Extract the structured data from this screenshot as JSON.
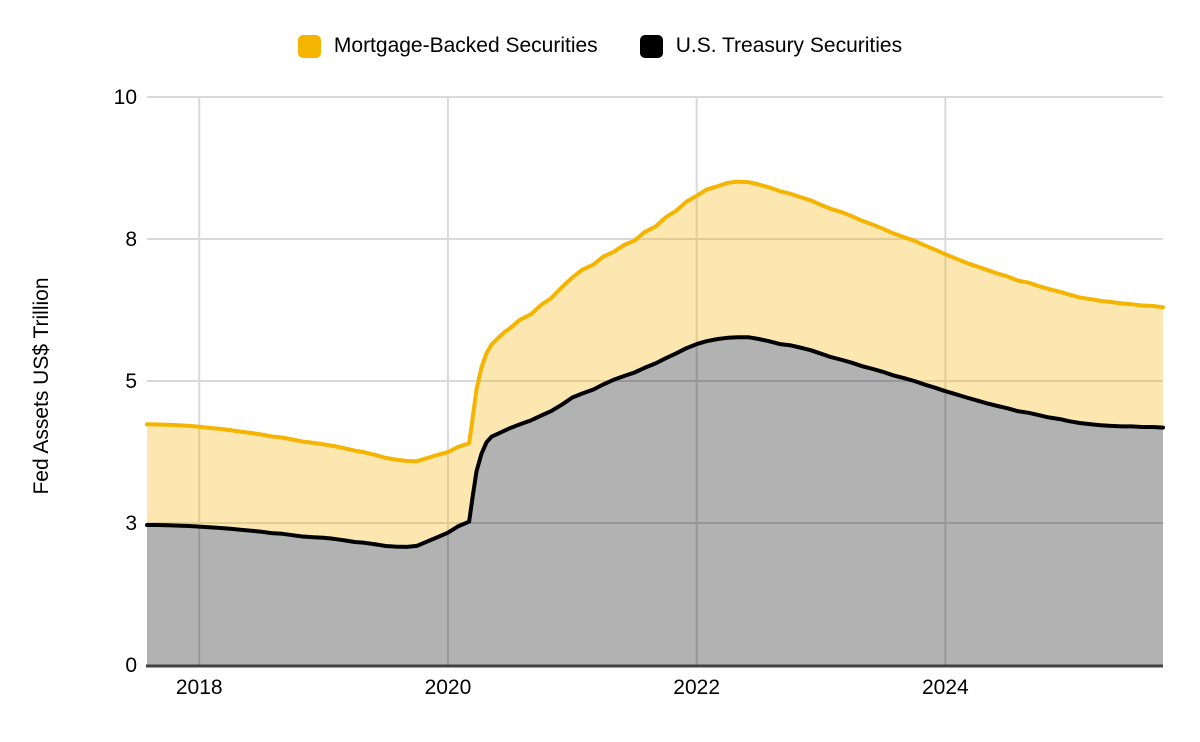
{
  "legend": {
    "items": [
      {
        "label": "Mortgage-Backed Securities",
        "color": "#F5B400"
      },
      {
        "label": "U.S. Treasury Securities",
        "color": "#000000"
      }
    ]
  },
  "y_axis": {
    "title": "Fed Assets US$ Trillion",
    "ticks": [
      {
        "value": 0,
        "label": "0"
      },
      {
        "value": 2.5,
        "label": "3"
      },
      {
        "value": 5,
        "label": "5"
      },
      {
        "value": 7.5,
        "label": "8"
      },
      {
        "value": 10,
        "label": "10"
      }
    ]
  },
  "x_axis": {
    "ticks": [
      {
        "value": 2018,
        "label": "2018"
      },
      {
        "value": 2020,
        "label": "2020"
      },
      {
        "value": 2022,
        "label": "2022"
      },
      {
        "value": 2024,
        "label": "2024"
      }
    ]
  },
  "colors": {
    "mbs_line": "#F5B400",
    "mbs_fill": "rgba(245,180,10,0.32)",
    "treasury_line": "#000000",
    "treasury_fill": "rgba(0,0,0,0.30)",
    "gridline": "#D9D9D9",
    "axis_line": "#424242",
    "text": "#000000"
  },
  "chart_data": {
    "type": "area",
    "stacked": true,
    "title": "",
    "xlabel": "",
    "ylabel": "Fed Assets US$ Trillion",
    "xlim": [
      2017.58,
      2025.75
    ],
    "ylim": [
      0,
      10
    ],
    "grid": true,
    "legend_position": "top",
    "units": "US$ trillion",
    "x": [
      2017.58,
      2017.67,
      2017.75,
      2017.83,
      2017.92,
      2018.0,
      2018.08,
      2018.17,
      2018.25,
      2018.33,
      2018.42,
      2018.5,
      2018.58,
      2018.67,
      2018.75,
      2018.83,
      2018.92,
      2019.0,
      2019.08,
      2019.17,
      2019.25,
      2019.33,
      2019.42,
      2019.5,
      2019.58,
      2019.67,
      2019.75,
      2019.83,
      2019.92,
      2020.0,
      2020.08,
      2020.17,
      2020.2,
      2020.23,
      2020.27,
      2020.31,
      2020.35,
      2020.42,
      2020.46,
      2020.5,
      2020.58,
      2020.67,
      2020.75,
      2020.83,
      2020.92,
      2021.0,
      2021.08,
      2021.17,
      2021.25,
      2021.33,
      2021.42,
      2021.5,
      2021.58,
      2021.67,
      2021.75,
      2021.83,
      2021.92,
      2022.0,
      2022.08,
      2022.17,
      2022.25,
      2022.33,
      2022.42,
      2022.5,
      2022.58,
      2022.67,
      2022.75,
      2022.83,
      2022.92,
      2023.0,
      2023.08,
      2023.17,
      2023.25,
      2023.33,
      2023.42,
      2023.5,
      2023.58,
      2023.67,
      2023.75,
      2023.83,
      2023.92,
      2024.0,
      2024.08,
      2024.17,
      2024.25,
      2024.33,
      2024.42,
      2024.5,
      2024.58,
      2024.67,
      2024.75,
      2024.83,
      2024.92,
      2025.0,
      2025.08,
      2025.17,
      2025.25,
      2025.33,
      2025.42,
      2025.5,
      2025.58,
      2025.67,
      2025.75
    ],
    "series": [
      {
        "name": "U.S. Treasury Securities",
        "line_color": "#000000",
        "fill_color": "rgba(0,0,0,0.30)",
        "values": [
          2.465,
          2.465,
          2.462,
          2.454,
          2.448,
          2.436,
          2.424,
          2.412,
          2.4,
          2.382,
          2.364,
          2.346,
          2.322,
          2.31,
          2.286,
          2.262,
          2.25,
          2.239,
          2.221,
          2.193,
          2.165,
          2.151,
          2.123,
          2.095,
          2.085,
          2.08,
          2.096,
          2.17,
          2.254,
          2.329,
          2.44,
          2.523,
          2.98,
          3.41,
          3.72,
          3.92,
          4.02,
          4.09,
          4.13,
          4.17,
          4.24,
          4.31,
          4.39,
          4.47,
          4.59,
          4.71,
          4.78,
          4.85,
          4.94,
          5.02,
          5.09,
          5.15,
          5.23,
          5.31,
          5.4,
          5.48,
          5.58,
          5.65,
          5.7,
          5.74,
          5.76,
          5.77,
          5.77,
          5.74,
          5.7,
          5.65,
          5.63,
          5.59,
          5.54,
          5.48,
          5.42,
          5.37,
          5.32,
          5.26,
          5.21,
          5.16,
          5.1,
          5.05,
          5.0,
          4.94,
          4.88,
          4.82,
          4.77,
          4.71,
          4.66,
          4.61,
          4.56,
          4.52,
          4.47,
          4.44,
          4.4,
          4.36,
          4.33,
          4.29,
          4.26,
          4.24,
          4.22,
          4.21,
          4.2,
          4.2,
          4.19,
          4.19,
          4.18
        ]
      },
      {
        "name": "Mortgage-Backed Securities",
        "line_color": "#F5B400",
        "fill_color": "rgba(245,180,10,0.32)",
        "values": [
          1.772,
          1.77,
          1.769,
          1.766,
          1.762,
          1.757,
          1.75,
          1.744,
          1.736,
          1.728,
          1.72,
          1.712,
          1.703,
          1.694,
          1.684,
          1.672,
          1.66,
          1.646,
          1.634,
          1.622,
          1.61,
          1.592,
          1.572,
          1.552,
          1.532,
          1.512,
          1.492,
          1.47,
          1.446,
          1.42,
          1.398,
          1.378,
          1.39,
          1.44,
          1.52,
          1.57,
          1.62,
          1.7,
          1.74,
          1.76,
          1.84,
          1.87,
          1.95,
          1.99,
          2.07,
          2.11,
          2.18,
          2.2,
          2.25,
          2.25,
          2.31,
          2.32,
          2.39,
          2.41,
          2.48,
          2.51,
          2.58,
          2.61,
          2.67,
          2.69,
          2.73,
          2.74,
          2.73,
          2.72,
          2.71,
          2.69,
          2.67,
          2.65,
          2.64,
          2.62,
          2.61,
          2.6,
          2.58,
          2.56,
          2.54,
          2.52,
          2.5,
          2.48,
          2.47,
          2.45,
          2.43,
          2.41,
          2.39,
          2.37,
          2.36,
          2.35,
          2.33,
          2.32,
          2.3,
          2.29,
          2.27,
          2.26,
          2.24,
          2.23,
          2.21,
          2.2,
          2.19,
          2.18,
          2.165,
          2.15,
          2.14,
          2.13,
          2.12
        ]
      }
    ]
  }
}
